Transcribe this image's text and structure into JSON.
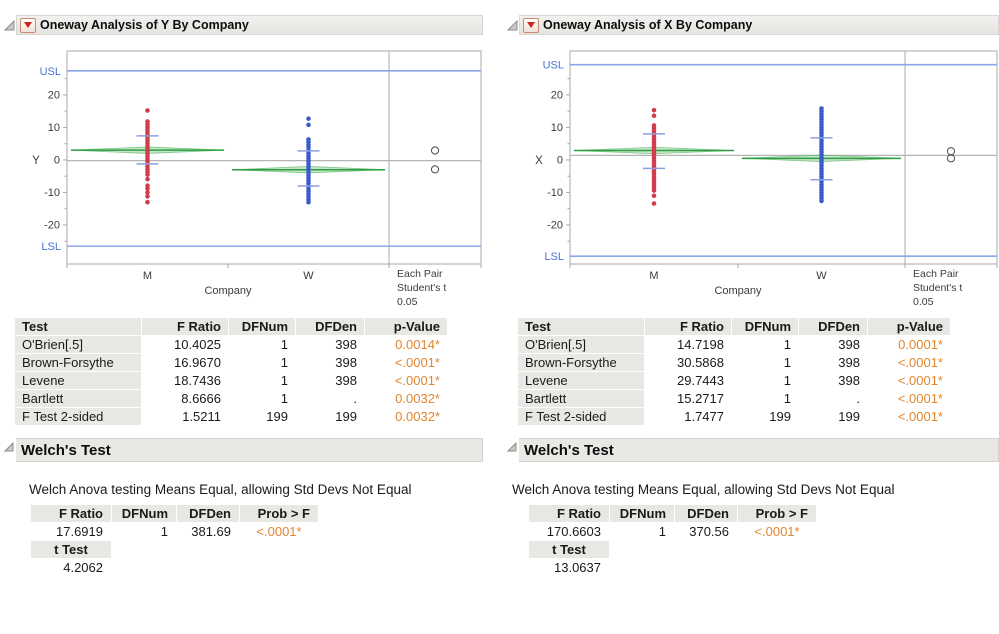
{
  "colors": {
    "significant_orange": "#e2862f",
    "m_points_red": "#d03c4b",
    "w_points_blue": "#3b5bc9",
    "mean_green": "#2f9e43",
    "spec_line_blue": "#8aa7e9",
    "spec_label_blue": "#4a74d4",
    "grand_mean_gray": "#b5b5b5",
    "frame_gray": "#a8a8a8"
  },
  "chart_data": [
    {
      "type": "scatter",
      "title": "Oneway Analysis of Y By Company",
      "ylabel": "Y",
      "xlabel": "Company",
      "categories": [
        "M",
        "W"
      ],
      "ylim": [
        -32,
        33.5
      ],
      "yticks": [
        20,
        10,
        0,
        -10,
        -20
      ],
      "minor_yticks": [
        25,
        15,
        5,
        -5,
        -15,
        -25
      ],
      "spec_limits": {
        "usl_label": "USL",
        "lsl_label": "LSL",
        "usl": 27.4,
        "lsl": -26.5
      },
      "grand_mean": -0.2,
      "series": [
        {
          "name": "M",
          "color": "#d03c4b",
          "strip": [
            11.8,
            -4.5
          ],
          "points_above": [
            15.2
          ],
          "points_below": [
            -5.9,
            -7.9,
            -8.8,
            -10.0,
            -11.2,
            -13.0
          ],
          "mean": 3.0,
          "mean_ci": 1.0,
          "sd_marks": [
            7.4,
            -1.2
          ]
        },
        {
          "name": "W",
          "color": "#3b5bc9",
          "strip": [
            6.3,
            -13.0
          ],
          "points_above": [
            12.7,
            10.8
          ],
          "points_below": [],
          "mean": -3.0,
          "mean_ci": 1.0,
          "sd_marks": [
            2.8,
            -8.0
          ]
        }
      ],
      "comparison_circles": {
        "label_lines": [
          "Each Pair",
          "Student's t",
          "0.05"
        ],
        "circles": [
          {
            "y": 2.9,
            "r": 1.1
          },
          {
            "y": -2.9,
            "r": 1.1
          }
        ]
      }
    },
    {
      "type": "scatter",
      "title": "Oneway Analysis of X By Company",
      "ylabel": "X",
      "xlabel": "Company",
      "categories": [
        "M",
        "W"
      ],
      "ylim": [
        -32,
        33.5
      ],
      "yticks": [
        20,
        10,
        0,
        -10,
        -20
      ],
      "minor_yticks": [
        25,
        15,
        5,
        -5,
        -15,
        -25
      ],
      "spec_limits": {
        "usl_label": "USL",
        "lsl_label": "LSL",
        "usl": 29.3,
        "lsl": -29.6
      },
      "grand_mean": 1.4,
      "series": [
        {
          "name": "M",
          "color": "#d03c4b",
          "strip": [
            10.6,
            -9.4
          ],
          "points_above": [
            15.3,
            13.6
          ],
          "points_below": [
            -11.0,
            -13.4
          ],
          "mean": 2.9,
          "mean_ci": 1.0,
          "sd_marks": [
            8.0,
            -2.6
          ]
        },
        {
          "name": "W",
          "color": "#3b5bc9",
          "strip": [
            15.8,
            -12.6
          ],
          "points_above": [],
          "points_below": [],
          "mean": 0.5,
          "mean_ci": 1.0,
          "sd_marks": [
            6.8,
            -6.1
          ]
        }
      ],
      "comparison_circles": {
        "label_lines": [
          "Each Pair",
          "Student's t",
          "0.05"
        ],
        "circles": [
          {
            "y": 2.7,
            "r": 1.1
          },
          {
            "y": 0.5,
            "r": 1.1
          }
        ]
      }
    }
  ],
  "panels": [
    {
      "title": "Oneway Analysis of Y By Company",
      "tests_table": {
        "headers": [
          "Test",
          "F Ratio",
          "DFNum",
          "DFDen",
          "p-Value"
        ],
        "rows": [
          [
            "O'Brien[.5]",
            "10.4025",
            "1",
            "398",
            "0.0014*"
          ],
          [
            "Brown-Forsythe",
            "16.9670",
            "1",
            "398",
            "<.0001*"
          ],
          [
            "Levene",
            "18.7436",
            "1",
            "398",
            "<.0001*"
          ],
          [
            "Bartlett",
            "8.6666",
            "1",
            ".",
            "0.0032*"
          ],
          [
            "F Test 2-sided",
            "1.5211",
            "199",
            "199",
            "0.0032*"
          ]
        ]
      },
      "welch": {
        "section_title": "Welch's Test",
        "subtitle": "Welch Anova testing Means Equal, allowing Std Devs Not Equal",
        "headers": [
          "F Ratio",
          "DFNum",
          "DFDen",
          "Prob > F"
        ],
        "values": [
          "17.6919",
          "1",
          "381.69",
          "<.0001*"
        ],
        "t_test_label": "t Test",
        "t_test_value": "4.2062"
      }
    },
    {
      "title": "Oneway Analysis of X By Company",
      "tests_table": {
        "headers": [
          "Test",
          "F Ratio",
          "DFNum",
          "DFDen",
          "p-Value"
        ],
        "rows": [
          [
            "O'Brien[.5]",
            "14.7198",
            "1",
            "398",
            "0.0001*"
          ],
          [
            "Brown-Forsythe",
            "30.5868",
            "1",
            "398",
            "<.0001*"
          ],
          [
            "Levene",
            "29.7443",
            "1",
            "398",
            "<.0001*"
          ],
          [
            "Bartlett",
            "15.2717",
            "1",
            ".",
            "<.0001*"
          ],
          [
            "F Test 2-sided",
            "1.7477",
            "199",
            "199",
            "<.0001*"
          ]
        ]
      },
      "welch": {
        "section_title": "Welch's Test",
        "subtitle": "Welch Anova testing Means Equal, allowing Std Devs Not Equal",
        "headers": [
          "F Ratio",
          "DFNum",
          "DFDen",
          "Prob > F"
        ],
        "values": [
          "170.6603",
          "1",
          "370.56",
          "<.0001*"
        ],
        "t_test_label": "t Test",
        "t_test_value": "13.0637"
      }
    }
  ]
}
